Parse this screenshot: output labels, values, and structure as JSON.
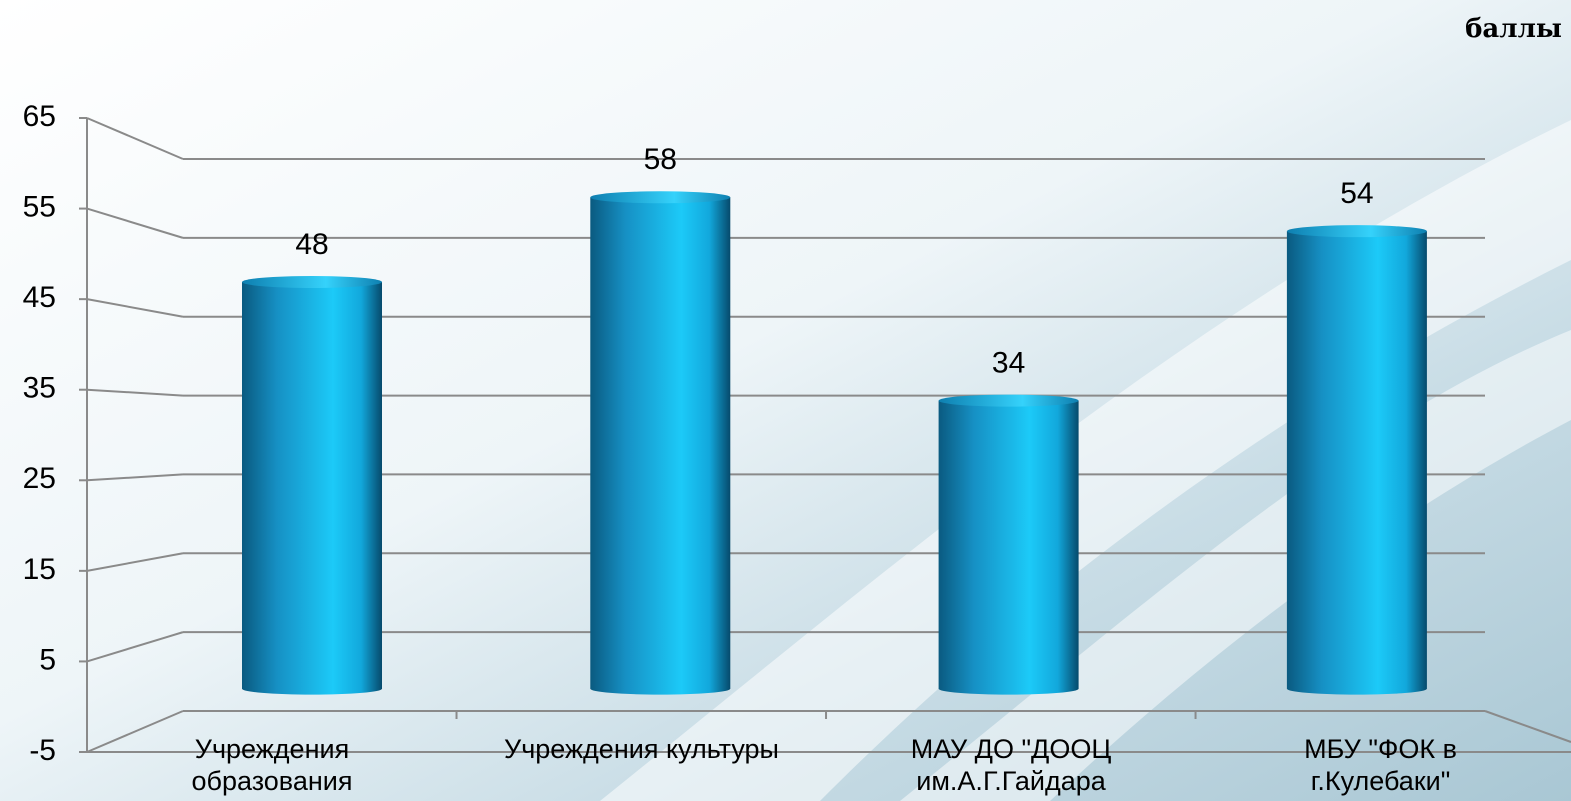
{
  "chart_data": {
    "type": "bar",
    "y_axis_label": "баллы",
    "categories": [
      "Учреждения\nобразования",
      "Учреждения культуры",
      "МАУ ДО \"ДООЦ\nим.А.Г.Гайдара",
      "МБУ \"ФОК в\nг.Кулебаки\""
    ],
    "values": [
      48,
      58,
      34,
      54
    ],
    "color": "#12b4e8",
    "ylim": [
      -5,
      65
    ],
    "yticks": [
      -5,
      5,
      15,
      25,
      35,
      45,
      55,
      65
    ],
    "grid": true
  }
}
